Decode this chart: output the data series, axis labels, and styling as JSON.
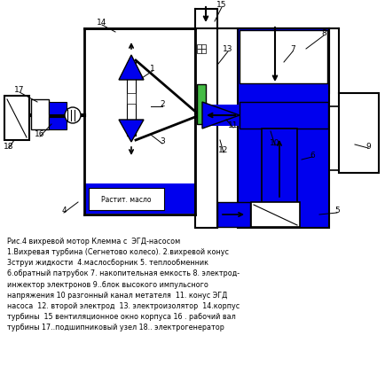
{
  "bg_color": "#ffffff",
  "blue": "#0000ee",
  "green": "#44bb44",
  "black": "#000000",
  "white": "#ffffff",
  "caption": "Рис.4 вихревой мотор Клемма с  ЭГД-насосом\n1.Вихревая турбина (Сегнетово колесо). 2.вихревой конус\n3струи жидкости  4.маслосборник 5. теплообменник\n6.обратный патрубок 7. накопительная емкость 8. электрод-\nинжектор электронов 9..блок высокого импульсного\nнапряжения 10 разгонный канал метателя  11. конус ЭГД\nнасоса  12. второй электрод  13. электроизолятор  14.корпус\nтурбины  15 вентиляционное окно корпуса 16 . рабочий вал\nтурбины 17..подшипниковый узел 18.. электрогенератор",
  "fig_width": 4.35,
  "fig_height": 4.4,
  "dpi": 100
}
